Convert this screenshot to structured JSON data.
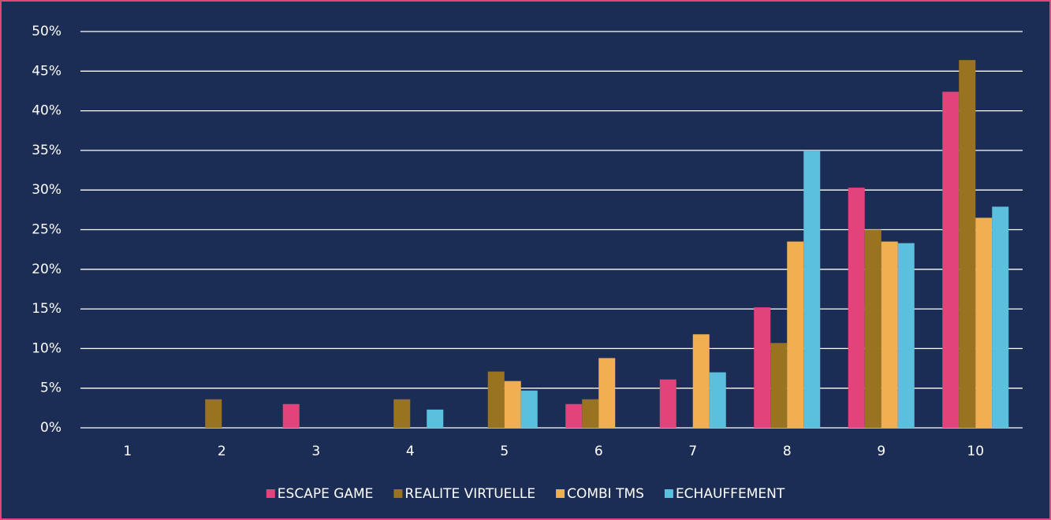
{
  "chart_data": {
    "type": "bar",
    "categories": [
      "1",
      "2",
      "3",
      "4",
      "5",
      "6",
      "7",
      "8",
      "9",
      "10"
    ],
    "series": [
      {
        "name": "ESCAPE GAME",
        "color": "#e2437a",
        "values": [
          0,
          0,
          3.0,
          0,
          0,
          3.0,
          6.1,
          15.2,
          30.3,
          42.4
        ]
      },
      {
        "name": "REALITE VIRTUELLE",
        "color": "#9a7320",
        "values": [
          0,
          3.6,
          0,
          3.6,
          7.1,
          3.6,
          0,
          10.7,
          25.0,
          46.4
        ]
      },
      {
        "name": "COMBI TMS",
        "color": "#f0b050",
        "values": [
          0,
          0,
          0,
          0,
          5.9,
          8.8,
          11.8,
          23.5,
          23.5,
          26.5
        ]
      },
      {
        "name": "ECHAUFFEMENT",
        "color": "#5bc0de",
        "values": [
          0,
          0,
          0,
          2.3,
          4.7,
          0,
          7.0,
          34.9,
          23.3,
          27.9
        ]
      }
    ],
    "ylim": [
      0,
      50
    ],
    "yticks": [
      {
        "value": 0,
        "label": "0%"
      },
      {
        "value": 5,
        "label": "5%"
      },
      {
        "value": 10,
        "label": "10%"
      },
      {
        "value": 15,
        "label": "15%"
      },
      {
        "value": 20,
        "label": "20%"
      },
      {
        "value": 25,
        "label": "25%"
      },
      {
        "value": 30,
        "label": "30%"
      },
      {
        "value": 35,
        "label": "35%"
      },
      {
        "value": 40,
        "label": "40%"
      },
      {
        "value": 45,
        "label": "45%"
      },
      {
        "value": 50,
        "label": "50%"
      }
    ],
    "grid": true,
    "legend": "bottom"
  }
}
